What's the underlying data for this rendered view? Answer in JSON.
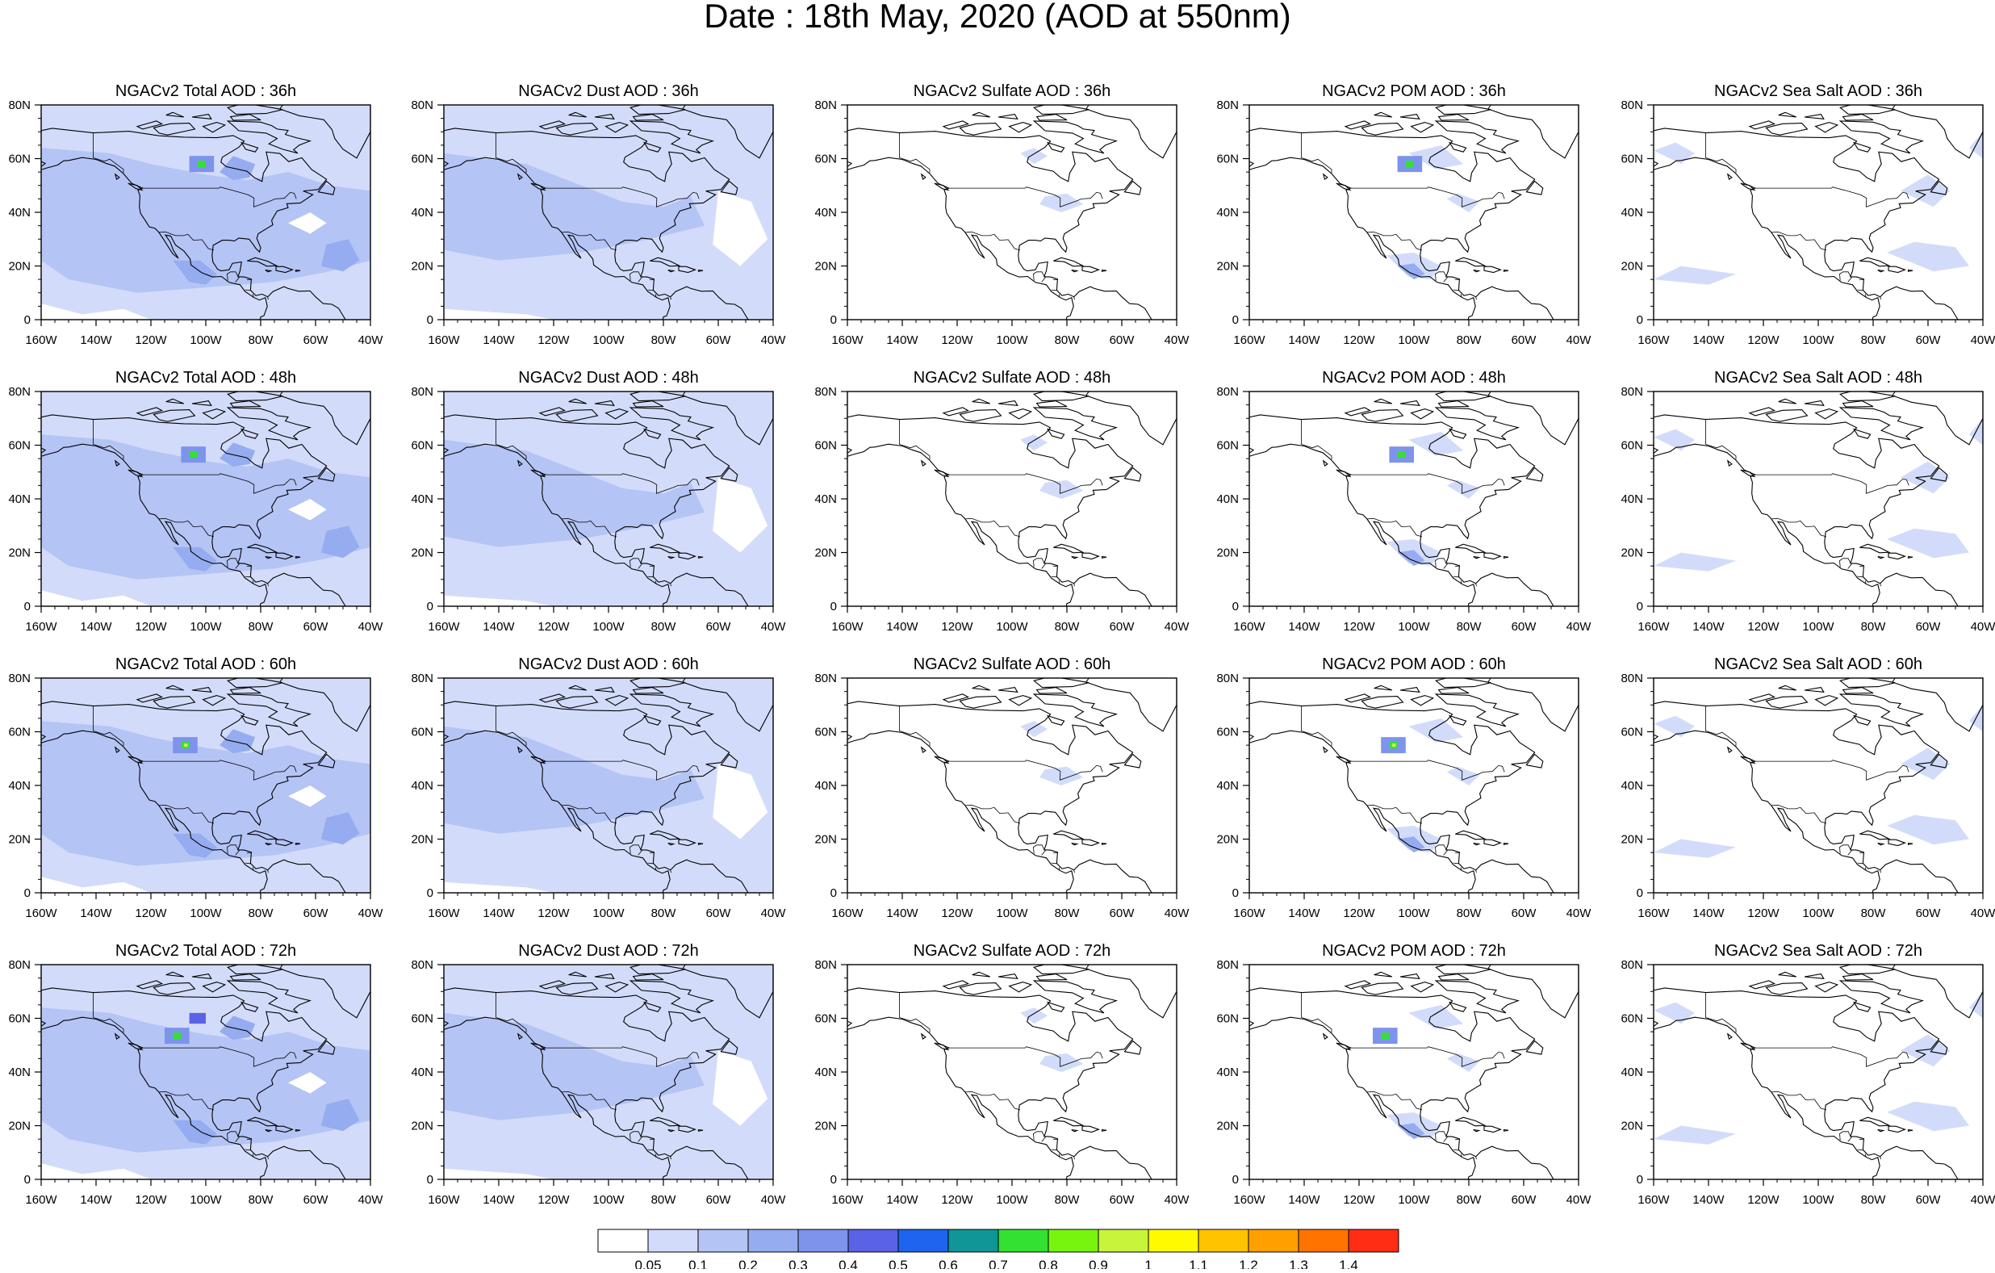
{
  "title": "Date : 18th May, 2020 (AOD at 550nm)",
  "axes": {
    "x_ticks": [
      "160W",
      "140W",
      "120W",
      "100W",
      "80W",
      "60W",
      "40W"
    ],
    "y_ticks": [
      "0",
      "20N",
      "40N",
      "60N",
      "80N"
    ]
  },
  "panels": [
    {
      "title": "NGACv2 Total AOD : 36h",
      "species": "total",
      "lead": 36
    },
    {
      "title": "NGACv2 Dust AOD : 36h",
      "species": "dust",
      "lead": 36
    },
    {
      "title": "NGACv2 Sulfate AOD : 36h",
      "species": "sulfate",
      "lead": 36
    },
    {
      "title": "NGACv2 POM AOD : 36h",
      "species": "pom",
      "lead": 36
    },
    {
      "title": "NGACv2 Sea Salt AOD : 36h",
      "species": "seasalt",
      "lead": 36
    },
    {
      "title": "NGACv2 Total AOD : 48h",
      "species": "total",
      "lead": 48
    },
    {
      "title": "NGACv2 Dust AOD : 48h",
      "species": "dust",
      "lead": 48
    },
    {
      "title": "NGACv2 Sulfate AOD : 48h",
      "species": "sulfate",
      "lead": 48
    },
    {
      "title": "NGACv2 POM AOD : 48h",
      "species": "pom",
      "lead": 48
    },
    {
      "title": "NGACv2 Sea Salt AOD : 48h",
      "species": "seasalt",
      "lead": 48
    },
    {
      "title": "NGACv2 Total AOD : 60h",
      "species": "total",
      "lead": 60
    },
    {
      "title": "NGACv2 Dust AOD : 60h",
      "species": "dust",
      "lead": 60
    },
    {
      "title": "NGACv2 Sulfate AOD : 60h",
      "species": "sulfate",
      "lead": 60
    },
    {
      "title": "NGACv2 POM AOD : 60h",
      "species": "pom",
      "lead": 60
    },
    {
      "title": "NGACv2 Sea Salt AOD : 60h",
      "species": "seasalt",
      "lead": 60
    },
    {
      "title": "NGACv2 Total AOD : 72h",
      "species": "total",
      "lead": 72
    },
    {
      "title": "NGACv2 Dust AOD : 72h",
      "species": "dust",
      "lead": 72
    },
    {
      "title": "NGACv2 Sulfate AOD : 72h",
      "species": "sulfate",
      "lead": 72
    },
    {
      "title": "NGACv2 POM AOD : 72h",
      "species": "pom",
      "lead": 72
    },
    {
      "title": "NGACv2 Sea Salt  AOD : 72h",
      "species": "seasalt",
      "lead": 72
    }
  ],
  "colorbar": {
    "labels": [
      "0.05",
      "0.1",
      "0.2",
      "0.3",
      "0.4",
      "0.5",
      "0.6",
      "0.7",
      "0.8",
      "0.9",
      "1",
      "1.1",
      "1.2",
      "1.3",
      "1.4"
    ],
    "colors": [
      "#ffffff",
      "#d2dcfa",
      "#b4c4f5",
      "#96acf0",
      "#7e93ec",
      "#5a63e6",
      "#1e64ee",
      "#0f9696",
      "#32e132",
      "#78f50f",
      "#c8f53c",
      "#fffa00",
      "#ffc300",
      "#ffa000",
      "#ff7300",
      "#ff2d14"
    ]
  },
  "colors": {
    "coast": "#000000",
    "light_blue": "#d2dcfa",
    "mid_blue": "#b4c4f5",
    "blue": "#96acf0"
  }
}
